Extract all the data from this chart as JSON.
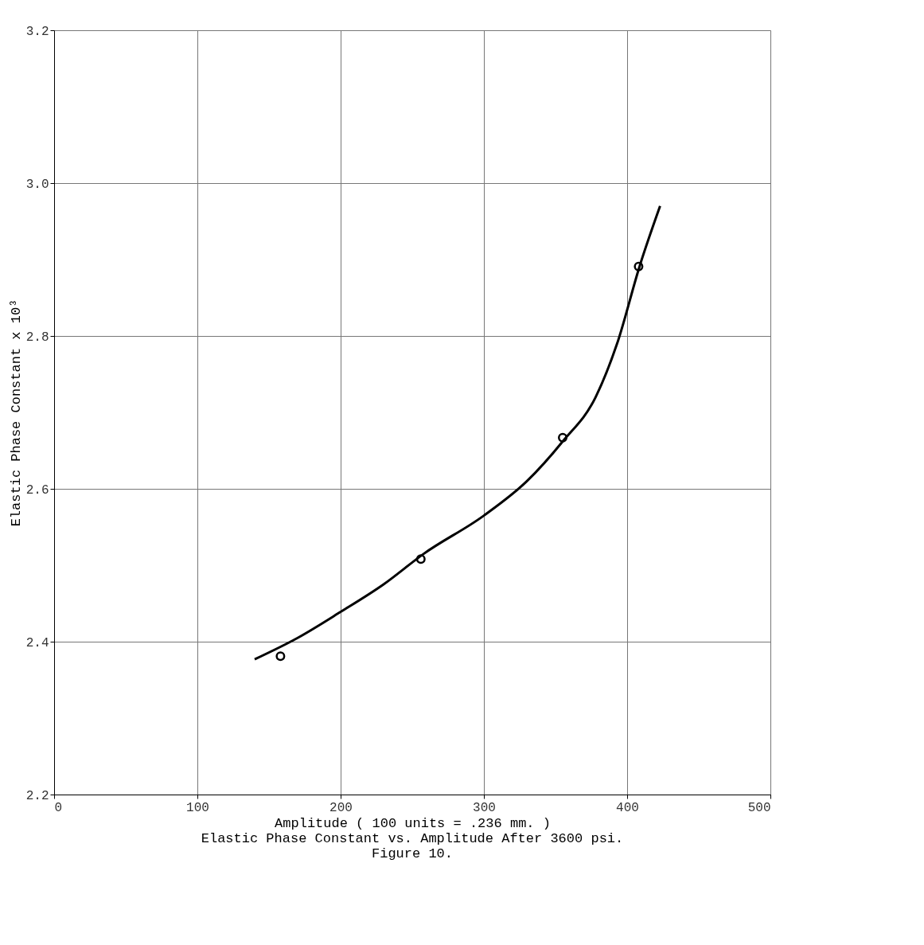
{
  "chart_data": {
    "type": "scatter",
    "xlabel": "Amplitude ( 100 units = .236 mm. )",
    "ylabel": "Elastic Phase Constant x 10³",
    "xlim": [
      0,
      500
    ],
    "xticks": [
      0,
      100,
      200,
      300,
      400,
      500
    ],
    "ylim": [
      2.2,
      3.2
    ],
    "yticks": [
      {
        "value": 2.2,
        "label": "2.2"
      },
      {
        "value": 2.4,
        "label": "2.4"
      },
      {
        "value": 2.6,
        "label": "2.6"
      },
      {
        "value": 2.8,
        "label": "2.8"
      },
      {
        "value": 3.0,
        "label": "3.0"
      },
      {
        "value": 3.2,
        "label": "3.2"
      }
    ],
    "grid": true,
    "series": [
      {
        "type": "line",
        "color": "#000000",
        "x": [
          140,
          170,
          200,
          230,
          258,
          300,
          330,
          355,
          378,
          393,
          409,
          423
        ],
        "values": [
          2.377,
          2.405,
          2.439,
          2.475,
          2.515,
          2.565,
          2.61,
          2.662,
          2.72,
          2.79,
          2.893,
          2.97
        ]
      },
      {
        "marker": "circle",
        "color": "#000000",
        "x": [
          158,
          256,
          355,
          408
        ],
        "values": [
          2.381,
          2.508,
          2.667,
          2.891
        ]
      }
    ],
    "annotations": [
      "Elastic Phase Constant vs. Amplitude After 3600 psi.",
      "Figure 10."
    ]
  }
}
